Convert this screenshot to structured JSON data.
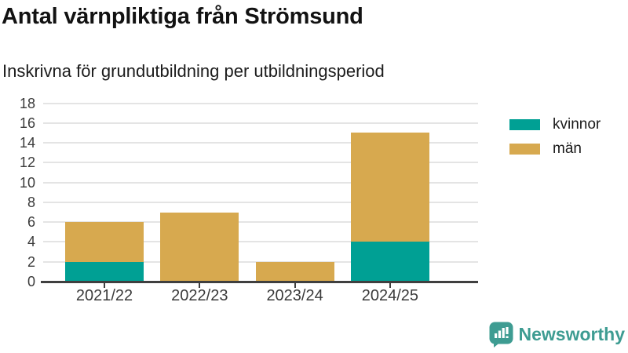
{
  "header": {
    "title": "Antal värnpliktiga från Strömsund",
    "subtitle": "Inskrivna för grundutbildning per utbildningsperiod"
  },
  "chart_data": {
    "type": "bar",
    "stacked": true,
    "title": "Antal värnpliktiga från Strömsund",
    "subtitle": "Inskrivna för grundutbildning per utbildningsperiod",
    "categories": [
      "2021/22",
      "2022/23",
      "2023/24",
      "2024/25"
    ],
    "series": [
      {
        "name": "kvinnor",
        "color": "#00A094",
        "values": [
          2,
          0,
          0,
          4
        ]
      },
      {
        "name": "män",
        "color": "#D7A94F",
        "values": [
          4,
          7,
          2,
          11
        ]
      }
    ],
    "xlabel": "",
    "ylabel": "",
    "ylim": [
      0,
      18
    ],
    "ytick_step": 2,
    "grid": true,
    "legend_position": "right"
  },
  "branding": {
    "logo_text": "Newsworthy",
    "logo_color": "#3E9C92",
    "logo_icon": "speech-bubble-bar-chart-icon"
  },
  "colors": {
    "axis": "#3F3F3F",
    "grid": "#E4E4E4",
    "title_text": "#121212",
    "tick_label": "#3A3A3A"
  }
}
